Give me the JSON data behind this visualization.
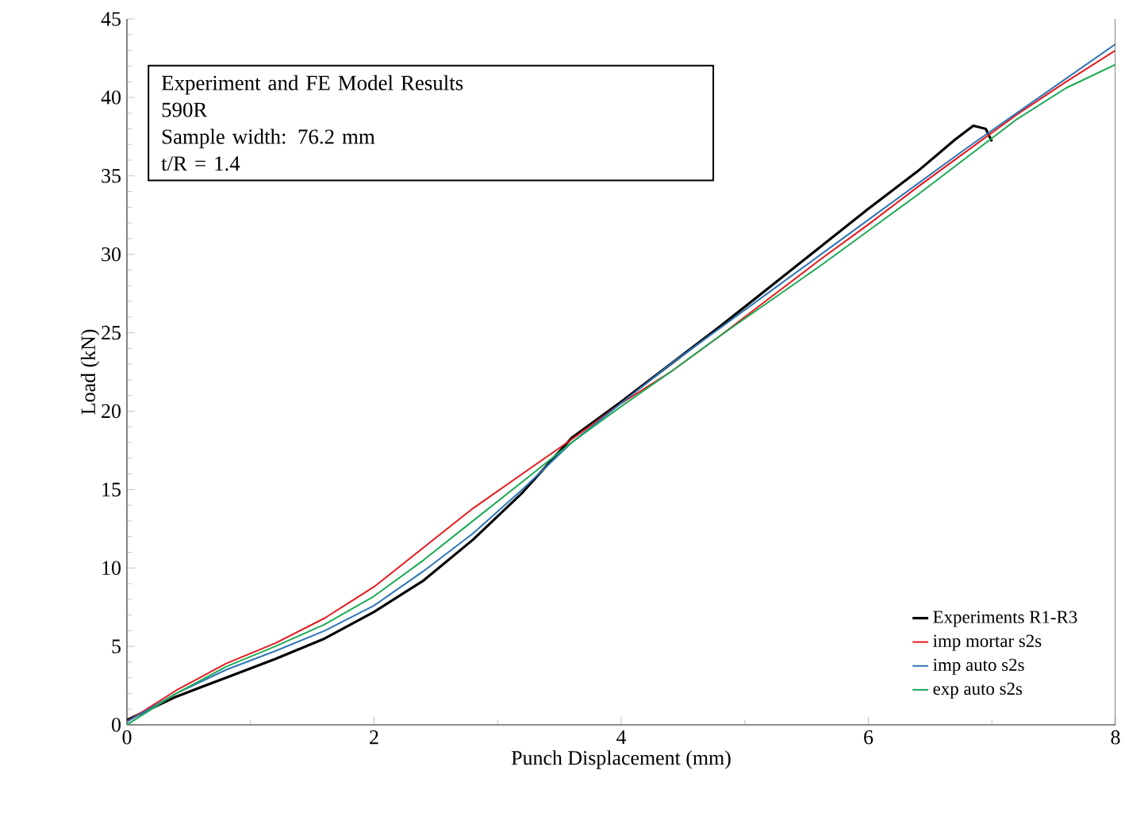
{
  "chart_data": {
    "type": "line",
    "xlabel": "Punch Displacement (mm)",
    "ylabel": "Load (kN)",
    "annotations": [
      "Experiment and FE Model Results",
      "590R",
      "Sample width: 76.2 mm",
      "t/R = 1.4"
    ],
    "xlim": [
      0,
      8
    ],
    "ylim": [
      0,
      45
    ],
    "xticks": [
      0,
      2,
      4,
      6,
      8
    ],
    "yticks": [
      0,
      5,
      10,
      15,
      20,
      25,
      30,
      35,
      40,
      45
    ],
    "legend": "bottom right",
    "grid": false,
    "marker": "none",
    "line_style": "solid",
    "series": [
      {
        "name": "Experiments R1-R3",
        "color": "#000000",
        "x": [
          0,
          0.4,
          0.8,
          1.2,
          1.6,
          2.0,
          2.4,
          2.8,
          3.2,
          3.6,
          4.0,
          4.4,
          4.8,
          5.2,
          5.6,
          6.0,
          6.4,
          6.7,
          6.85,
          6.95,
          7.0
        ],
        "values": [
          0.3,
          1.8,
          3.0,
          4.2,
          5.5,
          7.2,
          9.2,
          11.8,
          14.8,
          18.3,
          20.6,
          23.0,
          25.4,
          27.9,
          30.4,
          32.9,
          35.3,
          37.3,
          38.2,
          38.0,
          37.2
        ]
      },
      {
        "name": "imp mortar s2s",
        "color": "#e41a1c",
        "x": [
          0,
          0.4,
          0.8,
          1.2,
          1.6,
          2.0,
          2.4,
          2.8,
          3.2,
          3.6,
          4.0,
          4.4,
          4.8,
          5.2,
          5.6,
          6.0,
          6.4,
          6.8,
          7.2,
          7.6,
          8.0
        ],
        "values": [
          0.2,
          2.2,
          3.9,
          5.2,
          6.8,
          8.8,
          11.3,
          13.8,
          16.0,
          18.2,
          20.5,
          22.5,
          24.8,
          27.2,
          29.6,
          31.9,
          34.3,
          36.6,
          38.9,
          41.0,
          43.0
        ]
      },
      {
        "name": "imp auto s2s",
        "color": "#2e75b6",
        "x": [
          0,
          0.4,
          0.8,
          1.2,
          1.6,
          2.0,
          2.4,
          2.8,
          3.2,
          3.6,
          4.0,
          4.4,
          4.8,
          5.2,
          5.6,
          6.0,
          6.4,
          6.8,
          7.2,
          7.6,
          8.0
        ],
        "values": [
          0.2,
          2.0,
          3.5,
          4.7,
          6.0,
          7.6,
          9.8,
          12.2,
          15.0,
          18.0,
          20.5,
          23.0,
          25.3,
          27.6,
          29.9,
          32.2,
          34.5,
          36.8,
          39.0,
          41.2,
          43.4
        ]
      },
      {
        "name": "exp auto s2s",
        "color": "#1aaa55",
        "x": [
          0,
          0.4,
          0.8,
          1.2,
          1.6,
          2.0,
          2.4,
          2.8,
          3.2,
          3.6,
          4.0,
          4.4,
          4.8,
          5.2,
          5.6,
          6.0,
          6.4,
          6.8,
          7.2,
          7.6,
          8.0
        ],
        "values": [
          0,
          2.0,
          3.7,
          5.0,
          6.4,
          8.2,
          10.5,
          13.0,
          15.5,
          18.0,
          20.3,
          22.5,
          24.8,
          27.0,
          29.2,
          31.5,
          33.8,
          36.2,
          38.6,
          40.6,
          42.1
        ]
      }
    ]
  }
}
